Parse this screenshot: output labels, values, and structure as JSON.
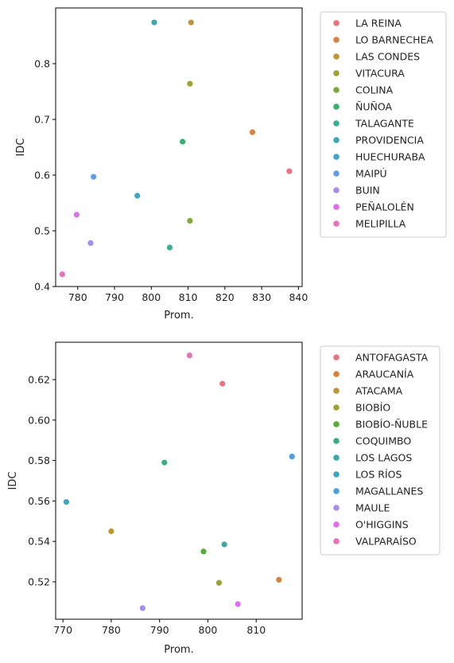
{
  "chart_data": [
    {
      "type": "scatter",
      "xlabel": "Prom.",
      "ylabel": "IDC",
      "xlim": [
        774,
        841
      ],
      "ylim": [
        0.4,
        0.9
      ],
      "xticks": [
        "780",
        "790",
        "800",
        "810",
        "820",
        "830",
        "840"
      ],
      "yticks": [
        "0.4",
        "0.5",
        "0.6",
        "0.7",
        "0.8"
      ],
      "legend_position": "outside-right",
      "series": [
        {
          "name": "LA REINA",
          "color": "#f0707f",
          "x": 837.5,
          "y": 0.607
        },
        {
          "name": "LO BARNECHEA",
          "color": "#e07f36",
          "x": 827.5,
          "y": 0.677
        },
        {
          "name": "LAS CONDES",
          "color": "#c49431",
          "x": 810.8,
          "y": 0.874
        },
        {
          "name": "VITACURA",
          "color": "#a3a12e",
          "x": 810.5,
          "y": 0.764
        },
        {
          "name": "COLINA",
          "color": "#7cac33",
          "x": 810.5,
          "y": 0.518
        },
        {
          "name": "ÑUÑOA",
          "color": "#33b16b",
          "x": 808.5,
          "y": 0.66
        },
        {
          "name": "TALAGANTE",
          "color": "#35ae9a",
          "x": 805.0,
          "y": 0.47
        },
        {
          "name": "PROVIDENCIA",
          "color": "#37abb1",
          "x": 800.8,
          "y": 0.874
        },
        {
          "name": "HUECHURABA",
          "color": "#3aa6c9",
          "x": 796.2,
          "y": 0.563
        },
        {
          "name": "MAIPÚ",
          "color": "#5f9bf0",
          "x": 784.3,
          "y": 0.597
        },
        {
          "name": "BUIN",
          "color": "#a68cf0",
          "x": 783.5,
          "y": 0.478
        },
        {
          "name": "PEÑALOLÉN",
          "color": "#e26cf0",
          "x": 779.7,
          "y": 0.529
        },
        {
          "name": "MELIPILLA",
          "color": "#f06db8",
          "x": 775.8,
          "y": 0.422
        }
      ]
    },
    {
      "type": "scatter",
      "xlabel": "Prom.",
      "ylabel": "IDC",
      "xlim": [
        768.5,
        819.5
      ],
      "ylim": [
        0.5015,
        0.6385
      ],
      "xticks": [
        "770",
        "780",
        "790",
        "800",
        "810"
      ],
      "yticks": [
        "0.52",
        "0.54",
        "0.56",
        "0.58",
        "0.60",
        "0.62"
      ],
      "legend_position": "outside-right",
      "series": [
        {
          "name": "ANTOFAGASTA",
          "color": "#f0707f",
          "x": 803.0,
          "y": 0.618
        },
        {
          "name": "ARAUCANÍA",
          "color": "#e07f36",
          "x": 814.7,
          "y": 0.521
        },
        {
          "name": "ATACAMA",
          "color": "#c09530",
          "x": 780.0,
          "y": 0.545
        },
        {
          "name": "BIOBÍO",
          "color": "#9da42e",
          "x": 802.3,
          "y": 0.5195
        },
        {
          "name": "BIOBÍO-ÑUBLE",
          "color": "#55b032",
          "x": 799.1,
          "y": 0.535
        },
        {
          "name": "COQUIMBO",
          "color": "#34af86",
          "x": 791.0,
          "y": 0.579
        },
        {
          "name": "LOS LAGOS",
          "color": "#36aba6",
          "x": 803.4,
          "y": 0.5385
        },
        {
          "name": "LOS RÍOS",
          "color": "#38a8c0",
          "x": 770.7,
          "y": 0.5595
        },
        {
          "name": "MAGALLANES",
          "color": "#47a0e6",
          "x": 817.4,
          "y": 0.582
        },
        {
          "name": "MAULE",
          "color": "#a68cf0",
          "x": 786.5,
          "y": 0.507
        },
        {
          "name": "O'HIGGINS",
          "color": "#e26cf0",
          "x": 806.2,
          "y": 0.509
        },
        {
          "name": "VALPARAÍSO",
          "color": "#f06db8",
          "x": 796.2,
          "y": 0.632
        }
      ]
    }
  ]
}
